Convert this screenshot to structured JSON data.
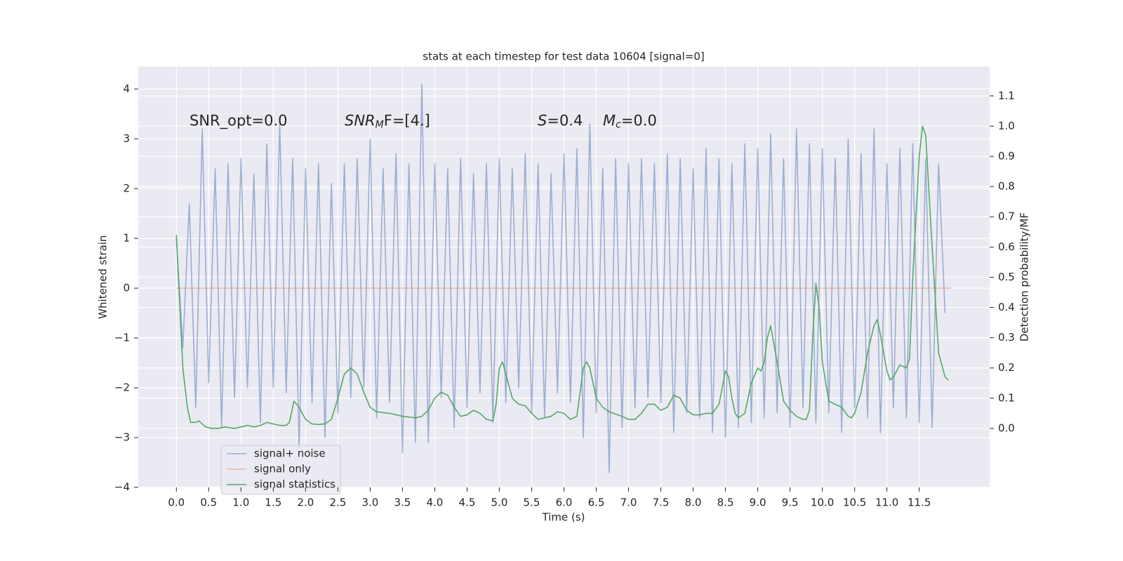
{
  "chart_data": {
    "type": "line",
    "title": "stats at each timestep for test data 10604 [signal=0]",
    "xlabel": "Time (s)",
    "ylabel": "Whitened strain",
    "y2label": "Detection probability/MF",
    "xlim": [
      -0.59,
      12.59
    ],
    "ylim": [
      -4.0,
      4.45
    ],
    "y2lim": [
      -0.195,
      1.197
    ],
    "xticks": [
      {
        "value": 0,
        "label": "0.0"
      },
      {
        "value": 0.5,
        "label": "0.5"
      },
      {
        "value": 1,
        "label": "1.0"
      },
      {
        "value": 1.5,
        "label": "1.5"
      },
      {
        "value": 2,
        "label": "2.0"
      },
      {
        "value": 2.5,
        "label": "2.5"
      },
      {
        "value": 3,
        "label": "3.0"
      },
      {
        "value": 3.5,
        "label": "3.5"
      },
      {
        "value": 4,
        "label": "4.0"
      },
      {
        "value": 4.5,
        "label": "4.5"
      },
      {
        "value": 5,
        "label": "5.0"
      },
      {
        "value": 5.5,
        "label": "5.5"
      },
      {
        "value": 6,
        "label": "6.0"
      },
      {
        "value": 6.5,
        "label": "6.5"
      },
      {
        "value": 7,
        "label": "7.0"
      },
      {
        "value": 7.5,
        "label": "7.5"
      },
      {
        "value": 8,
        "label": "8.0"
      },
      {
        "value": 8.5,
        "label": "8.5"
      },
      {
        "value": 9,
        "label": "9.0"
      },
      {
        "value": 9.5,
        "label": "9.5"
      },
      {
        "value": 10,
        "label": "10.0"
      },
      {
        "value": 10.5,
        "label": "10.5"
      },
      {
        "value": 11,
        "label": "11.0"
      },
      {
        "value": 11.5,
        "label": "11.5"
      }
    ],
    "yticks": [
      {
        "value": -4,
        "label": "−4"
      },
      {
        "value": -3,
        "label": "−3"
      },
      {
        "value": -2,
        "label": "−2"
      },
      {
        "value": -1,
        "label": "−1"
      },
      0,
      1,
      2,
      3,
      4
    ],
    "y2ticks": [
      {
        "value": 0,
        "label": "0.0"
      },
      {
        "value": 0.1,
        "label": "0.1"
      },
      {
        "value": 0.2,
        "label": "0.2"
      },
      {
        "value": 0.3,
        "label": "0.3"
      },
      {
        "value": 0.4,
        "label": "0.4"
      },
      {
        "value": 0.5,
        "label": "0.5"
      },
      {
        "value": 0.6,
        "label": "0.6"
      },
      {
        "value": 0.7,
        "label": "0.7"
      },
      {
        "value": 0.8,
        "label": "0.8"
      },
      {
        "value": 0.9,
        "label": "0.9"
      },
      {
        "value": 1.0,
        "label": "1.0"
      },
      {
        "value": 1.1,
        "label": "1.1"
      }
    ],
    "grid": true,
    "legend": "lower left",
    "annotations": [
      {
        "text": "SNR_opt=0.0"
      },
      {
        "text": "SNR",
        "sub": "M",
        "rest": "F=[4.]"
      },
      {
        "text": "S",
        "rest": "=0.4"
      },
      {
        "text": "M",
        "sub": "c",
        "rest": "=0.0"
      }
    ],
    "series": [
      {
        "name": "signal+ noise",
        "color": "#4c72b0",
        "alpha": 0.5,
        "x": [
          0.0,
          0.1,
          0.2,
          0.3,
          0.4,
          0.5,
          0.6,
          0.7,
          0.8,
          0.9,
          1.0,
          1.1,
          1.2,
          1.3,
          1.4,
          1.5,
          1.6,
          1.7,
          1.8,
          1.9,
          2.0,
          2.1,
          2.2,
          2.3,
          2.4,
          2.5,
          2.6,
          2.7,
          2.8,
          2.9,
          3.0,
          3.1,
          3.2,
          3.3,
          3.4,
          3.5,
          3.6,
          3.7,
          3.8,
          3.9,
          4.0,
          4.1,
          4.2,
          4.3,
          4.4,
          4.5,
          4.6,
          4.7,
          4.8,
          4.9,
          5.0,
          5.1,
          5.2,
          5.3,
          5.4,
          5.5,
          5.6,
          5.7,
          5.8,
          5.9,
          6.0,
          6.1,
          6.2,
          6.3,
          6.4,
          6.5,
          6.6,
          6.7,
          6.8,
          6.9,
          7.0,
          7.1,
          7.2,
          7.3,
          7.4,
          7.5,
          7.6,
          7.7,
          7.8,
          7.9,
          8.0,
          8.1,
          8.2,
          8.3,
          8.4,
          8.5,
          8.6,
          8.7,
          8.8,
          8.9,
          9.0,
          9.1,
          9.2,
          9.3,
          9.4,
          9.5,
          9.6,
          9.7,
          9.8,
          9.9,
          10.0,
          10.1,
          10.2,
          10.3,
          10.4,
          10.5,
          10.6,
          10.7,
          10.8,
          10.9,
          11.0,
          11.1,
          11.2,
          11.3,
          11.4,
          11.5,
          11.6,
          11.7,
          11.8,
          11.9
        ],
        "values": [
          1.0,
          -1.2,
          1.7,
          -2.4,
          3.2,
          -1.9,
          2.4,
          -2.8,
          2.5,
          -2.2,
          2.6,
          -2.0,
          2.3,
          -2.7,
          2.9,
          -2.0,
          3.3,
          -2.1,
          2.6,
          -3.2,
          2.4,
          -2.3,
          2.5,
          -3.0,
          2.1,
          -2.5,
          2.5,
          -2.2,
          2.6,
          -2.0,
          3.0,
          -2.6,
          2.4,
          -2.3,
          2.7,
          -3.3,
          2.5,
          -3.1,
          4.1,
          -3.1,
          2.5,
          -2.2,
          2.4,
          -2.8,
          2.6,
          -2.4,
          2.3,
          -2.1,
          2.5,
          -2.7,
          2.6,
          -2.3,
          2.4,
          -2.0,
          2.7,
          -2.5,
          2.5,
          -2.6,
          2.3,
          -2.1,
          2.7,
          -2.3,
          2.8,
          -3.0,
          3.3,
          -2.5,
          2.4,
          -3.7,
          2.6,
          -2.8,
          2.5,
          -2.4,
          2.6,
          -2.2,
          2.5,
          -2.3,
          2.7,
          -2.9,
          2.6,
          -2.5,
          2.4,
          -2.6,
          2.8,
          -2.9,
          2.6,
          -3.0,
          2.5,
          -2.8,
          2.9,
          -2.7,
          2.8,
          -2.6,
          3.1,
          -2.5,
          2.6,
          -2.8,
          3.2,
          -2.4,
          2.9,
          -2.7,
          2.8,
          -2.5,
          2.6,
          -2.9,
          3.0,
          -2.4,
          2.7,
          -2.6,
          3.2,
          -2.9,
          2.5,
          -2.4,
          2.8,
          -2.6,
          2.9,
          -2.7,
          2.6,
          -2.8,
          2.5,
          -0.5
        ]
      },
      {
        "name": "signal only",
        "color": "#dd8452",
        "alpha": 0.5,
        "x": [
          0.0,
          11.99
        ],
        "values": [
          0,
          0
        ]
      },
      {
        "name": "signal statistics",
        "color": "#55a868",
        "alpha": 1,
        "axis": "y2",
        "x": [
          0.0,
          0.1,
          0.17,
          0.22,
          0.3,
          0.35,
          0.45,
          0.55,
          0.65,
          0.75,
          0.9,
          1.0,
          1.1,
          1.2,
          1.3,
          1.4,
          1.5,
          1.6,
          1.7,
          1.75,
          1.82,
          1.9,
          2.0,
          2.1,
          2.2,
          2.3,
          2.4,
          2.5,
          2.6,
          2.7,
          2.8,
          2.9,
          3.0,
          3.1,
          3.3,
          3.5,
          3.7,
          3.8,
          3.9,
          4.0,
          4.1,
          4.2,
          4.3,
          4.4,
          4.5,
          4.6,
          4.7,
          4.8,
          4.9,
          4.95,
          5.0,
          5.05,
          5.1,
          5.2,
          5.3,
          5.4,
          5.5,
          5.6,
          5.8,
          5.9,
          6.0,
          6.1,
          6.2,
          6.3,
          6.35,
          6.4,
          6.5,
          6.6,
          6.7,
          6.9,
          7.0,
          7.1,
          7.2,
          7.3,
          7.4,
          7.5,
          7.6,
          7.7,
          7.8,
          7.9,
          8.0,
          8.1,
          8.2,
          8.3,
          8.4,
          8.5,
          8.55,
          8.6,
          8.65,
          8.7,
          8.8,
          8.9,
          9.0,
          9.05,
          9.1,
          9.15,
          9.2,
          9.3,
          9.4,
          9.5,
          9.6,
          9.7,
          9.75,
          9.8,
          9.85,
          9.9,
          9.95,
          10.0,
          10.1,
          10.2,
          10.3,
          10.4,
          10.45,
          10.5,
          10.6,
          10.7,
          10.8,
          10.85,
          10.9,
          11.0,
          11.05,
          11.1,
          11.2,
          11.3,
          11.35,
          11.4,
          11.5,
          11.55,
          11.6,
          11.7,
          11.8,
          11.9,
          11.95
        ],
        "values": [
          0.64,
          0.2,
          0.07,
          0.02,
          0.02,
          0.025,
          0.005,
          0.0,
          0.0,
          0.005,
          0.0,
          0.005,
          0.01,
          0.005,
          0.01,
          0.02,
          0.015,
          0.01,
          0.01,
          0.02,
          0.09,
          0.07,
          0.03,
          0.015,
          0.013,
          0.015,
          0.03,
          0.1,
          0.18,
          0.2,
          0.18,
          0.12,
          0.07,
          0.055,
          0.05,
          0.04,
          0.035,
          0.04,
          0.06,
          0.1,
          0.12,
          0.11,
          0.07,
          0.04,
          0.045,
          0.06,
          0.05,
          0.03,
          0.025,
          0.08,
          0.2,
          0.22,
          0.18,
          0.1,
          0.08,
          0.075,
          0.05,
          0.03,
          0.04,
          0.055,
          0.05,
          0.03,
          0.04,
          0.2,
          0.22,
          0.2,
          0.1,
          0.07,
          0.055,
          0.04,
          0.03,
          0.03,
          0.05,
          0.08,
          0.08,
          0.06,
          0.07,
          0.11,
          0.1,
          0.06,
          0.045,
          0.045,
          0.05,
          0.05,
          0.08,
          0.19,
          0.17,
          0.1,
          0.05,
          0.035,
          0.05,
          0.15,
          0.2,
          0.19,
          0.22,
          0.3,
          0.34,
          0.22,
          0.09,
          0.06,
          0.04,
          0.03,
          0.03,
          0.06,
          0.3,
          0.48,
          0.4,
          0.22,
          0.09,
          0.08,
          0.07,
          0.04,
          0.035,
          0.05,
          0.12,
          0.25,
          0.34,
          0.36,
          0.31,
          0.19,
          0.16,
          0.17,
          0.21,
          0.2,
          0.23,
          0.5,
          0.9,
          1.0,
          0.97,
          0.6,
          0.25,
          0.17,
          0.16
        ]
      }
    ]
  }
}
